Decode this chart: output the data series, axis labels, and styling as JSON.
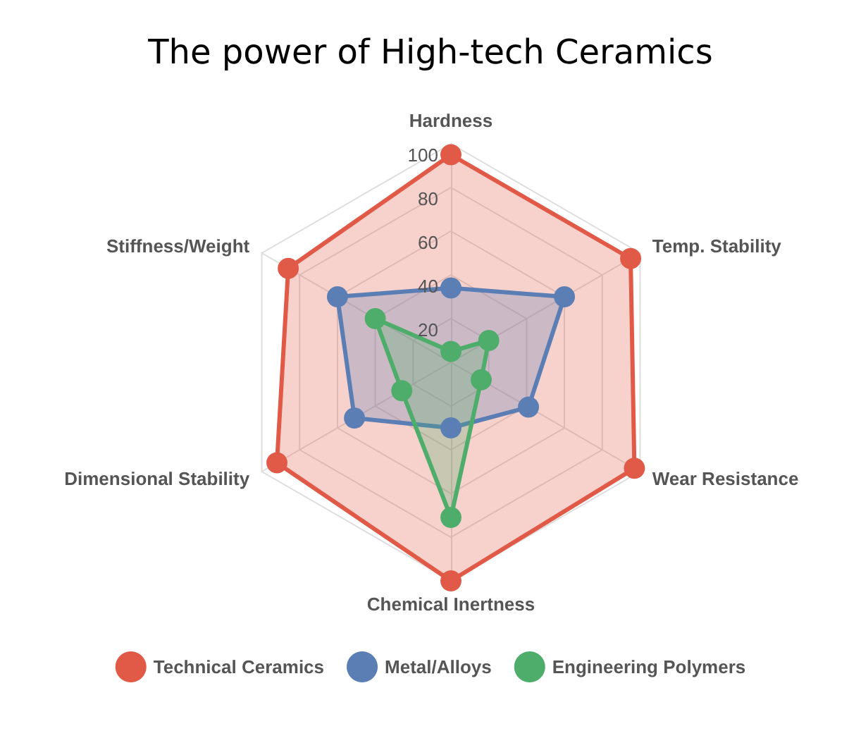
{
  "chart_data": {
    "type": "radar",
    "title": "The power of High-tech Ceramics",
    "categories": [
      "Hardness",
      "Temp. Stability",
      "Wear Resistance",
      "Chemical Inertness",
      "Dimensional Stability",
      "Stiffness/Weight"
    ],
    "series": [
      {
        "name": "Technical Ceramics",
        "color": "#e15a47",
        "values": [
          95,
          95,
          97,
          100,
          92,
          86
        ]
      },
      {
        "name": "Metal/Alloys",
        "color": "#5b7fb5",
        "values": [
          34,
          60,
          41,
          30,
          51,
          60
        ]
      },
      {
        "name": "Engineering Polymers",
        "color": "#4ead6a",
        "values": [
          5,
          20,
          16,
          71,
          26,
          40
        ]
      }
    ],
    "ylim": [
      0,
      100
    ],
    "yticks": [
      20,
      40,
      60,
      80,
      100
    ],
    "marker": "circle",
    "legend": "bottom",
    "grid": true
  }
}
